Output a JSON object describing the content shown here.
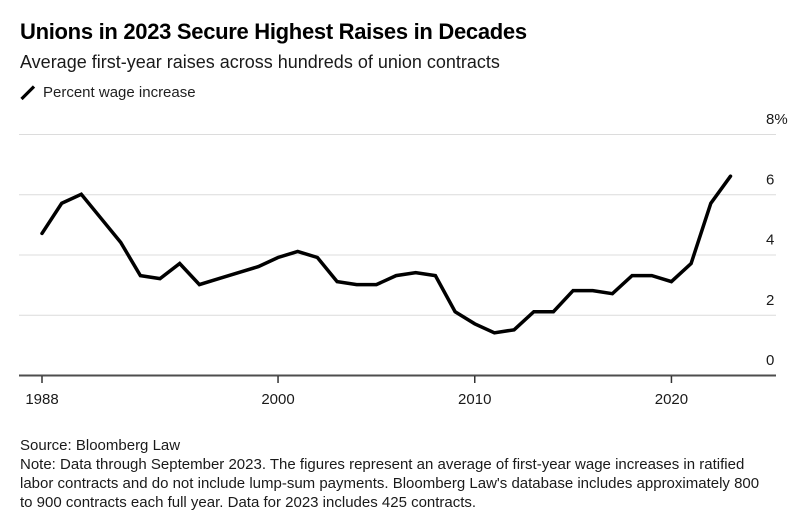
{
  "colors": {
    "line": "#000000",
    "grid": "#dcdcdc",
    "axis_line": "#4d4d4d",
    "tick": "#333333",
    "text": "#1a1a1a",
    "title": "#000000",
    "background": "#ffffff"
  },
  "chart_data": {
    "type": "line",
    "title": "Unions in 2023 Secure Highest Raises in Decades",
    "subtitle": "Average first-year raises across hundreds of union contracts",
    "legend": "Percent wage increase",
    "xlabel": "",
    "ylabel": "Percent wage increase",
    "x": [
      1988,
      1989,
      1990,
      1991,
      1992,
      1993,
      1994,
      1995,
      1996,
      1997,
      1998,
      1999,
      2000,
      2001,
      2002,
      2003,
      2004,
      2005,
      2006,
      2007,
      2008,
      2009,
      2010,
      2011,
      2012,
      2013,
      2014,
      2015,
      2016,
      2017,
      2018,
      2019,
      2020,
      2021,
      2022,
      2023
    ],
    "values": [
      4.7,
      5.7,
      6.0,
      5.2,
      4.4,
      3.3,
      3.2,
      3.7,
      3.0,
      3.2,
      3.4,
      3.6,
      3.9,
      4.1,
      3.9,
      3.1,
      3.0,
      3.0,
      3.3,
      3.4,
      3.3,
      2.1,
      1.7,
      1.4,
      1.5,
      2.1,
      2.1,
      2.8,
      2.8,
      2.7,
      3.3,
      3.3,
      3.1,
      3.7,
      5.7,
      6.6
    ],
    "x_ticks": [
      {
        "value": 1988,
        "label": "1988"
      },
      {
        "value": 2000,
        "label": "2000"
      },
      {
        "value": 2010,
        "label": "2010"
      },
      {
        "value": 2020,
        "label": "2020"
      }
    ],
    "y_ticks": [
      {
        "value": 8,
        "label": "8%"
      },
      {
        "value": 6,
        "label": "6"
      },
      {
        "value": 4,
        "label": "4"
      },
      {
        "value": 2,
        "label": "2"
      },
      {
        "value": 0,
        "label": "0"
      }
    ],
    "ylim": [
      0,
      8
    ],
    "xlim": [
      1986.8,
      2025.3
    ],
    "grid": "horizontal-light",
    "legend_position": "top-left"
  },
  "footer": {
    "source": "Source: Bloomberg Law",
    "note": "Note: Data through September 2023. The figures represent an average of first-year wage increases in ratified labor contracts and do not include lump-sum payments. Bloomberg Law's database includes approximately 800 to 900 contracts each full year. Data for 2023 includes 425 contracts."
  }
}
